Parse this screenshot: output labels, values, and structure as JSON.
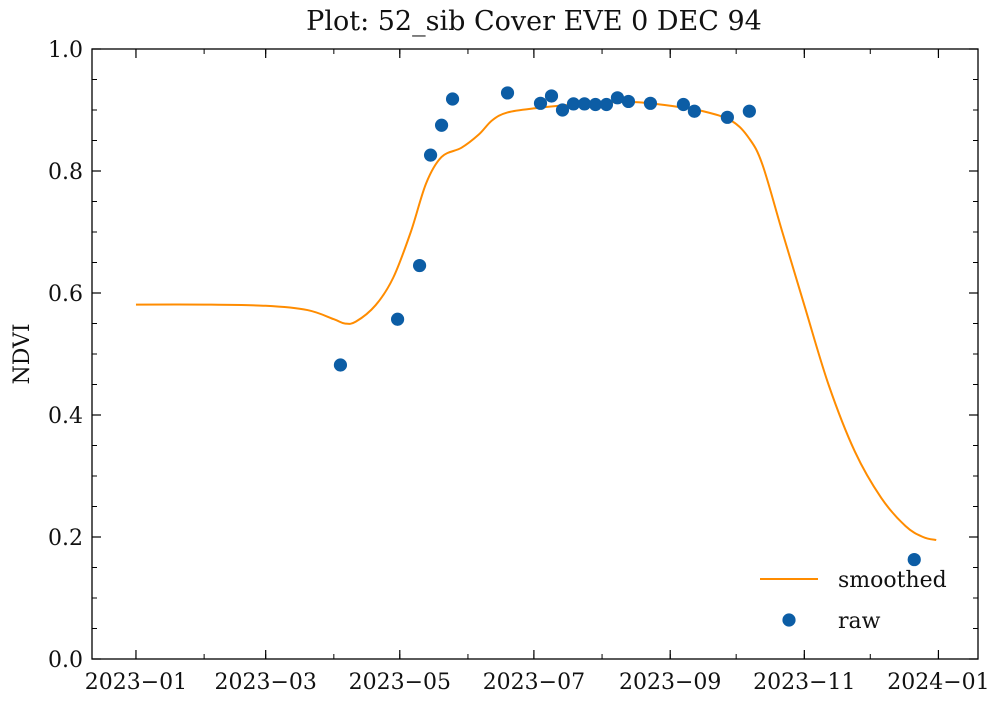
{
  "chart_data": {
    "type": "line",
    "title": "Plot: 52_sib Cover EVE 0 DEC 94",
    "xlabel": "",
    "ylabel": "NDVI",
    "ylim": [
      0,
      1.0
    ],
    "xlim": [
      "2022-12-12",
      "2024-01-19"
    ],
    "grid": false,
    "legend_position": "lower-right",
    "y_ticks": [
      {
        "value": 0.0,
        "label": "0.0"
      },
      {
        "value": 0.2,
        "label": "0.2"
      },
      {
        "value": 0.4,
        "label": "0.4"
      },
      {
        "value": 0.6,
        "label": "0.6"
      },
      {
        "value": 0.8,
        "label": "0.8"
      },
      {
        "value": 1.0,
        "label": "1.0"
      }
    ],
    "x_ticks": [
      {
        "value": "2023-01-01",
        "label": "2023−01"
      },
      {
        "value": "2023-03-01",
        "label": "2023−03"
      },
      {
        "value": "2023-05-01",
        "label": "2023−05"
      },
      {
        "value": "2023-07-01",
        "label": "2023−07"
      },
      {
        "value": "2023-09-01",
        "label": "2023−09"
      },
      {
        "value": "2023-11-01",
        "label": "2023−11"
      },
      {
        "value": "2024-01-01",
        "label": "2024−01"
      }
    ],
    "series": [
      {
        "name": "smoothed",
        "kind": "line",
        "color": "#ff8c00",
        "points": [
          {
            "x": "2023-01-01",
            "y": 0.581
          },
          {
            "x": "2023-02-01",
            "y": 0.581
          },
          {
            "x": "2023-03-01",
            "y": 0.579
          },
          {
            "x": "2023-03-20",
            "y": 0.572
          },
          {
            "x": "2023-04-01",
            "y": 0.557
          },
          {
            "x": "2023-04-06",
            "y": 0.55
          },
          {
            "x": "2023-04-11",
            "y": 0.553
          },
          {
            "x": "2023-04-20",
            "y": 0.58
          },
          {
            "x": "2023-04-28",
            "y": 0.625
          },
          {
            "x": "2023-05-06",
            "y": 0.7
          },
          {
            "x": "2023-05-13",
            "y": 0.78
          },
          {
            "x": "2023-05-20",
            "y": 0.823
          },
          {
            "x": "2023-05-29",
            "y": 0.838
          },
          {
            "x": "2023-06-06",
            "y": 0.86
          },
          {
            "x": "2023-06-12",
            "y": 0.883
          },
          {
            "x": "2023-06-19",
            "y": 0.896
          },
          {
            "x": "2023-07-02",
            "y": 0.903
          },
          {
            "x": "2023-07-16",
            "y": 0.908
          },
          {
            "x": "2023-08-01",
            "y": 0.912
          },
          {
            "x": "2023-08-16",
            "y": 0.913
          },
          {
            "x": "2023-09-01",
            "y": 0.907
          },
          {
            "x": "2023-09-16",
            "y": 0.898
          },
          {
            "x": "2023-09-29",
            "y": 0.882
          },
          {
            "x": "2023-10-07",
            "y": 0.853
          },
          {
            "x": "2023-10-13",
            "y": 0.81
          },
          {
            "x": "2023-10-22",
            "y": 0.7
          },
          {
            "x": "2023-11-01",
            "y": 0.58
          },
          {
            "x": "2023-11-12",
            "y": 0.45
          },
          {
            "x": "2023-11-24",
            "y": 0.34
          },
          {
            "x": "2023-12-06",
            "y": 0.264
          },
          {
            "x": "2023-12-17",
            "y": 0.218
          },
          {
            "x": "2023-12-25",
            "y": 0.2
          },
          {
            "x": "2023-12-31",
            "y": 0.195
          }
        ]
      },
      {
        "name": "raw",
        "kind": "scatter",
        "color": "#0c5da5",
        "points": [
          {
            "x": "2023-04-04",
            "y": 0.482
          },
          {
            "x": "2023-04-30",
            "y": 0.557
          },
          {
            "x": "2023-05-10",
            "y": 0.645
          },
          {
            "x": "2023-05-15",
            "y": 0.826
          },
          {
            "x": "2023-05-20",
            "y": 0.875
          },
          {
            "x": "2023-05-25",
            "y": 0.918
          },
          {
            "x": "2023-06-19",
            "y": 0.928
          },
          {
            "x": "2023-07-04",
            "y": 0.911
          },
          {
            "x": "2023-07-09",
            "y": 0.923
          },
          {
            "x": "2023-07-14",
            "y": 0.9
          },
          {
            "x": "2023-07-19",
            "y": 0.91
          },
          {
            "x": "2023-07-24",
            "y": 0.91
          },
          {
            "x": "2023-07-29",
            "y": 0.909
          },
          {
            "x": "2023-08-03",
            "y": 0.909
          },
          {
            "x": "2023-08-08",
            "y": 0.92
          },
          {
            "x": "2023-08-13",
            "y": 0.914
          },
          {
            "x": "2023-08-23",
            "y": 0.911
          },
          {
            "x": "2023-09-07",
            "y": 0.909
          },
          {
            "x": "2023-09-12",
            "y": 0.898
          },
          {
            "x": "2023-09-27",
            "y": 0.888
          },
          {
            "x": "2023-10-07",
            "y": 0.898
          },
          {
            "x": "2023-12-21",
            "y": 0.163
          }
        ]
      }
    ]
  }
}
